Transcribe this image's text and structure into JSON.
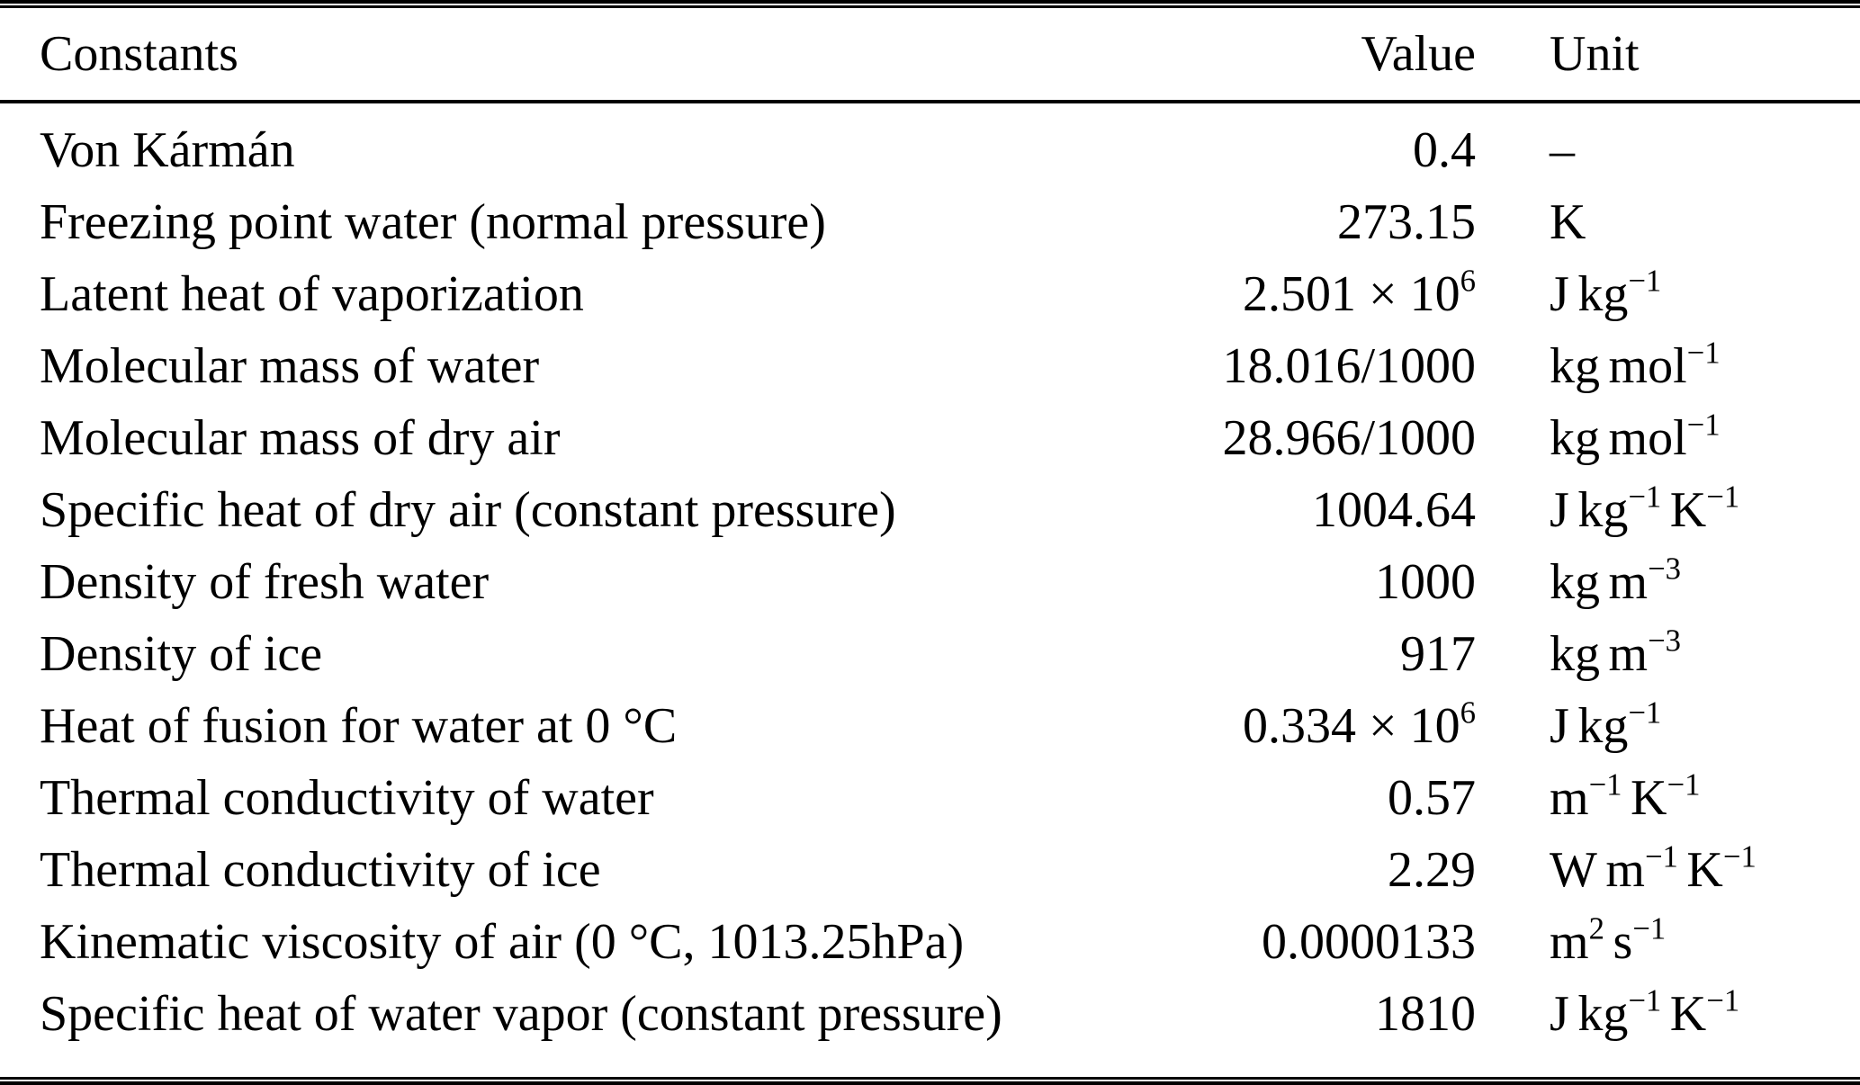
{
  "table": {
    "columns": {
      "constants": "Constants",
      "value": "Value",
      "unit": "Unit"
    },
    "rows": [
      {
        "name": "Von Kármán",
        "value": "0.4",
        "value_sup": "",
        "unit": [
          {
            "text": "–"
          }
        ]
      },
      {
        "name": "Freezing point water (normal pressure)",
        "value": "273.15",
        "value_sup": "",
        "unit": [
          {
            "text": "K"
          }
        ]
      },
      {
        "name": "Latent heat of vaporization",
        "value": "2.501 × 10",
        "value_sup": "6",
        "unit": [
          {
            "text": "J"
          },
          {
            "text": "kg",
            "sup": "−1"
          }
        ]
      },
      {
        "name": "Molecular mass of water",
        "value": "18.016/1000",
        "value_sup": "",
        "unit": [
          {
            "text": "kg"
          },
          {
            "text": "mol",
            "sup": "−1"
          }
        ]
      },
      {
        "name": "Molecular mass of dry air",
        "value": "28.966/1000",
        "value_sup": "",
        "unit": [
          {
            "text": "kg"
          },
          {
            "text": "mol",
            "sup": "−1"
          }
        ]
      },
      {
        "name": "Specific heat of dry air (constant pressure)",
        "value": "1004.64",
        "value_sup": "",
        "unit": [
          {
            "text": "J"
          },
          {
            "text": "kg",
            "sup": "−1"
          },
          {
            "text": "K",
            "sup": "−1"
          }
        ]
      },
      {
        "name": "Density of fresh water",
        "value": "1000",
        "value_sup": "",
        "unit": [
          {
            "text": "kg"
          },
          {
            "text": "m",
            "sup": "−3"
          }
        ]
      },
      {
        "name": "Density of ice",
        "value": "917",
        "value_sup": "",
        "unit": [
          {
            "text": "kg"
          },
          {
            "text": "m",
            "sup": "−3"
          }
        ]
      },
      {
        "name": "Heat of fusion for water at 0 °C",
        "value": "0.334 × 10",
        "value_sup": "6",
        "unit": [
          {
            "text": "J"
          },
          {
            "text": "kg",
            "sup": "−1"
          }
        ]
      },
      {
        "name": "Thermal conductivity of water",
        "value": "0.57",
        "value_sup": "",
        "unit": [
          {
            "text": "m",
            "sup": "−1"
          },
          {
            "text": "K",
            "sup": "−1"
          }
        ]
      },
      {
        "name": "Thermal conductivity of ice",
        "value": "2.29",
        "value_sup": "",
        "unit": [
          {
            "text": "W"
          },
          {
            "text": "m",
            "sup": "−1"
          },
          {
            "text": "K",
            "sup": "−1"
          }
        ]
      },
      {
        "name": "Kinematic viscosity of air (0 °C, 1013.25hPa)",
        "value": "0.0000133",
        "value_sup": "",
        "unit": [
          {
            "text": "m",
            "sup": "2"
          },
          {
            "text": "s",
            "sup": "−1"
          }
        ]
      },
      {
        "name": "Specific heat of water vapor (constant pressure)",
        "value": "1810",
        "value_sup": "",
        "unit": [
          {
            "text": "J"
          },
          {
            "text": "kg",
            "sup": "−1"
          },
          {
            "text": "K",
            "sup": "−1"
          }
        ]
      }
    ]
  },
  "colors": {
    "text": "#000000",
    "background": "#ffffff",
    "rule": "#000000"
  }
}
